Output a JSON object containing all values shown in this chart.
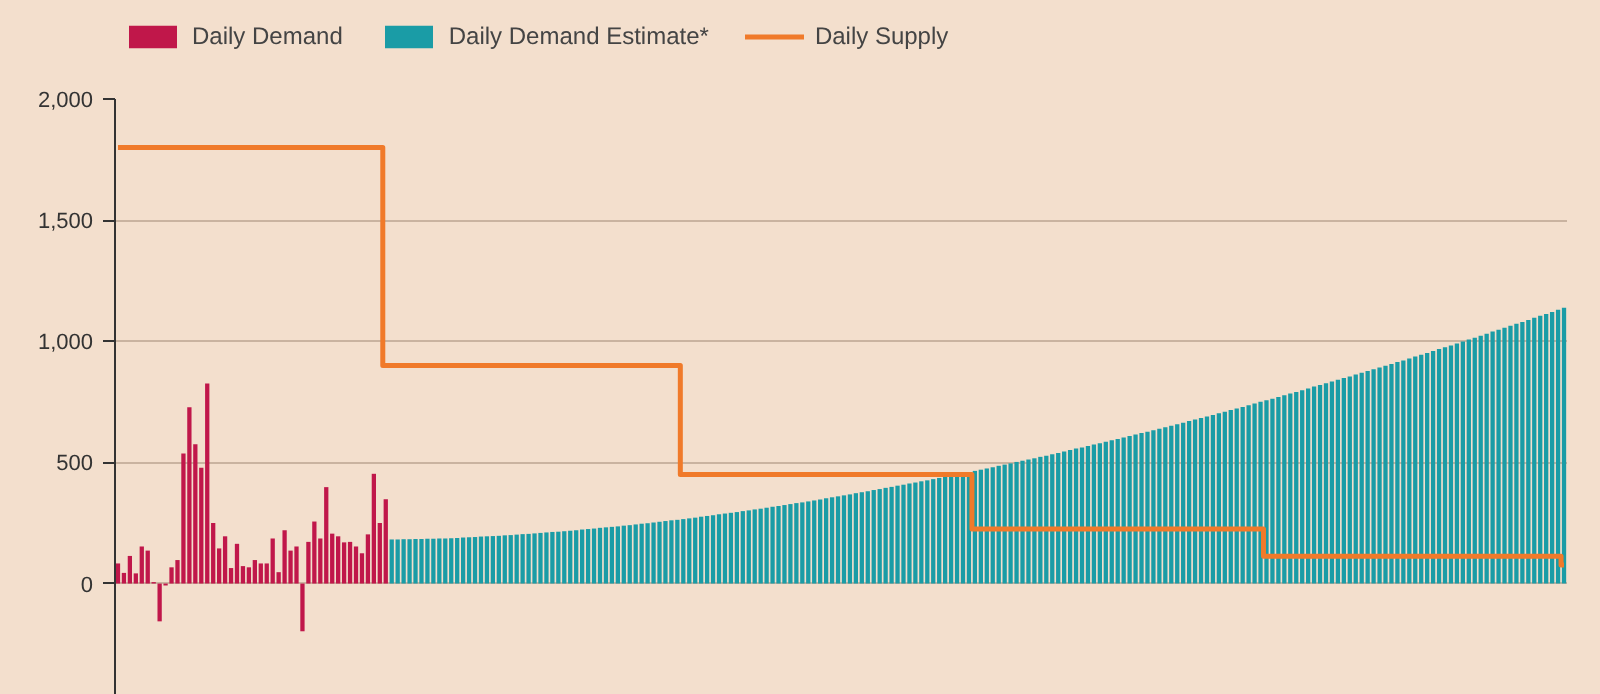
{
  "chart_data": {
    "type": "bar",
    "legend": "top",
    "grid": "y",
    "tick_labels": "y",
    "categories": [
      null,
      null,
      null,
      null,
      null,
      null,
      null,
      null,
      null,
      null,
      null,
      null,
      null,
      null,
      null,
      null,
      null,
      null,
      null,
      null,
      null,
      null,
      null,
      null,
      null,
      null,
      null,
      null,
      null,
      null,
      null,
      null,
      null,
      null,
      null,
      null,
      null,
      null,
      null,
      null,
      null,
      null,
      null,
      null,
      null,
      null,
      null,
      null,
      null,
      null,
      null,
      null,
      null,
      null,
      null,
      null,
      null,
      null,
      null,
      null,
      null,
      null,
      null,
      null,
      null,
      null,
      null,
      null,
      null,
      null,
      null,
      null,
      null,
      null,
      null,
      null,
      null,
      null,
      null,
      null,
      null,
      null,
      null,
      null,
      null,
      null,
      null,
      null,
      null,
      null,
      null,
      null,
      null,
      null,
      null,
      null,
      null,
      null,
      null,
      null,
      null,
      null,
      null,
      null,
      null,
      null,
      null,
      null,
      null,
      null,
      null,
      null,
      null,
      null,
      null,
      null,
      null,
      null,
      null,
      null,
      null,
      null,
      null,
      null,
      null,
      null,
      null,
      null,
      null,
      null,
      null,
      null,
      null,
      null,
      null,
      null,
      null,
      null,
      null,
      null,
      null,
      null,
      null,
      null,
      null,
      null,
      null,
      null,
      null,
      null,
      null,
      null,
      null,
      null,
      null,
      null,
      null,
      null,
      null,
      null,
      null,
      null,
      null,
      null,
      null,
      null,
      null,
      null,
      null,
      null,
      null,
      null,
      null,
      null,
      null,
      null,
      null,
      null,
      null,
      null,
      null,
      null,
      null,
      null,
      null,
      null,
      null,
      null,
      null,
      null,
      null,
      null,
      null,
      null,
      null,
      null,
      null,
      null,
      null,
      null,
      null,
      null,
      null,
      null,
      null,
      null,
      null,
      null,
      null,
      null,
      null,
      null,
      null,
      null,
      null,
      null,
      null,
      null,
      null,
      null,
      null,
      null,
      null,
      null,
      null,
      null,
      null,
      null,
      null,
      null,
      null,
      null,
      null,
      null,
      null,
      null,
      null,
      null,
      null,
      null,
      null,
      null,
      null,
      null
    ],
    "ylim": [
      -460,
      2000
    ],
    "yticks": [
      {
        "value": 0,
        "label": "0"
      },
      {
        "value": 500,
        "label": "500"
      },
      {
        "value": 1000,
        "label": "1,000"
      },
      {
        "value": 1500,
        "label": "1,500"
      },
      {
        "value": 2000,
        "label": "2,000"
      }
    ],
    "series": [
      {
        "name": "Daily Demand",
        "color": "#c0174a",
        "values": [
          83,
          44,
          114,
          42,
          153,
          136,
          6,
          -156,
          -8,
          67,
          97,
          537,
          728,
          575,
          478,
          826,
          250,
          145,
          195,
          64,
          164,
          72,
          67,
          97,
          83,
          83,
          186,
          47,
          220,
          136,
          153,
          -197,
          172,
          256,
          186,
          398,
          206,
          195,
          170,
          172,
          153,
          125,
          203,
          453,
          250,
          348,
          null,
          null,
          null,
          null,
          null,
          null,
          null,
          null,
          null,
          null,
          null,
          null,
          null,
          null,
          null,
          null,
          null,
          null,
          null,
          null,
          null,
          null,
          null,
          null,
          null,
          null,
          null,
          null,
          null,
          null,
          null,
          null,
          null,
          null,
          null,
          null,
          null,
          null,
          null,
          null,
          null,
          null,
          null,
          null,
          null,
          null,
          null,
          null,
          null,
          null,
          null,
          null,
          null,
          null,
          null,
          null,
          null,
          null,
          null,
          null,
          null,
          null,
          null,
          null,
          null,
          null,
          null,
          null,
          null,
          null,
          null,
          null,
          null,
          null,
          null,
          null,
          null,
          null,
          null,
          null,
          null,
          null,
          null,
          null,
          null,
          null,
          null,
          null,
          null,
          null,
          null,
          null,
          null,
          null,
          null,
          null,
          null,
          null,
          null,
          null,
          null,
          null,
          null,
          null,
          null,
          null,
          null,
          null,
          null,
          null,
          null,
          null,
          null,
          null,
          null,
          null,
          null,
          null,
          null,
          null,
          null,
          null,
          null,
          null,
          null,
          null,
          null,
          null,
          null,
          null,
          null,
          null,
          null,
          null,
          null,
          null,
          null,
          null,
          null,
          null,
          null,
          null,
          null,
          null,
          null,
          null,
          null,
          null,
          null,
          null,
          null,
          null,
          null,
          null,
          null,
          null,
          null,
          null,
          null,
          null,
          null,
          null,
          null,
          null,
          null,
          null,
          null,
          null,
          null,
          null,
          null,
          null,
          null,
          null,
          null,
          null,
          null,
          null,
          null,
          null,
          null,
          null,
          null,
          null,
          null,
          null,
          null,
          null,
          null,
          null,
          null,
          null,
          null,
          null,
          null,
          null,
          null,
          null
        ]
      },
      {
        "name": "Daily Demand Estimate*",
        "color": "#1a9ca6",
        "values": [
          null,
          null,
          null,
          null,
          null,
          null,
          null,
          null,
          null,
          null,
          null,
          null,
          null,
          null,
          null,
          null,
          null,
          null,
          null,
          null,
          null,
          null,
          null,
          null,
          null,
          null,
          null,
          null,
          null,
          null,
          null,
          null,
          null,
          null,
          null,
          null,
          null,
          null,
          null,
          null,
          null,
          null,
          null,
          null,
          null,
          null,
          182,
          182,
          183,
          183,
          184,
          184,
          185,
          185,
          186,
          186,
          187,
          188,
          190,
          191,
          192,
          194,
          195,
          196,
          197,
          199,
          200,
          202,
          204,
          205,
          207,
          209,
          211,
          213,
          214,
          216,
          218,
          220,
          223,
          225,
          227,
          230,
          232,
          234,
          236,
          239,
          241,
          244,
          247,
          249,
          252,
          255,
          258,
          261,
          263,
          266,
          269,
          272,
          276,
          279,
          282,
          286,
          289,
          292,
          295,
          299,
          302,
          306,
          309,
          313,
          317,
          320,
          324,
          328,
          332,
          335,
          339,
          343,
          347,
          352,
          356,
          360,
          364,
          368,
          373,
          377,
          381,
          386,
          390,
          395,
          399,
          404,
          408,
          413,
          417,
          422,
          426,
          431,
          436,
          441,
          446,
          451,
          455,
          460,
          465,
          470,
          475,
          480,
          486,
          491,
          496,
          502,
          507,
          512,
          517,
          523,
          528,
          534,
          539,
          545,
          551,
          557,
          562,
          568,
          574,
          579,
          585,
          591,
          597,
          603,
          609,
          615,
          621,
          627,
          633,
          639,
          645,
          651,
          658,
          664,
          671,
          677,
          683,
          690,
          696,
          703,
          709,
          716,
          723,
          729,
          736,
          743,
          750,
          757,
          763,
          770,
          777,
          784,
          791,
          798,
          805,
          813,
          820,
          827,
          834,
          841,
          848,
          855,
          863,
          870,
          877,
          885,
          892,
          899,
          906,
          914,
          921,
          929,
          937,
          944,
          952,
          960,
          968,
          975,
          983,
          991,
          999,
          1007,
          1015,
          1023,
          1031,
          1040,
          1048,
          1056,
          1064,
          1072,
          1080,
          1088,
          1097,
          1105,
          1113,
          1121,
          1130,
          1138
        ]
      },
      {
        "name": "Daily Supply",
        "type": "step",
        "color": "#f07a2a",
        "values": [
          1800,
          1800,
          1800,
          1800,
          1800,
          1800,
          1800,
          1800,
          1800,
          1800,
          1800,
          1800,
          1800,
          1800,
          1800,
          1800,
          1800,
          1800,
          1800,
          1800,
          1800,
          1800,
          1800,
          1800,
          1800,
          1800,
          1800,
          1800,
          1800,
          1800,
          1800,
          1800,
          1800,
          1800,
          1800,
          1800,
          1800,
          1800,
          1800,
          1800,
          1800,
          1800,
          1800,
          1800,
          1800,
          900,
          900,
          900,
          900,
          900,
          900,
          900,
          900,
          900,
          900,
          900,
          900,
          900,
          900,
          900,
          900,
          900,
          900,
          900,
          900,
          900,
          900,
          900,
          900,
          900,
          900,
          900,
          900,
          900,
          900,
          900,
          900,
          900,
          900,
          900,
          900,
          900,
          900,
          900,
          900,
          900,
          900,
          900,
          900,
          900,
          900,
          900,
          900,
          900,
          900,
          450,
          450,
          450,
          450,
          450,
          450,
          450,
          450,
          450,
          450,
          450,
          450,
          450,
          450,
          450,
          450,
          450,
          450,
          450,
          450,
          450,
          450,
          450,
          450,
          450,
          450,
          450,
          450,
          450,
          450,
          450,
          450,
          450,
          450,
          450,
          450,
          450,
          450,
          450,
          450,
          450,
          450,
          450,
          450,
          450,
          450,
          450,
          450,
          450,
          225,
          225,
          225,
          225,
          225,
          225,
          225,
          225,
          225,
          225,
          225,
          225,
          225,
          225,
          225,
          225,
          225,
          225,
          225,
          225,
          225,
          225,
          225,
          225,
          225,
          225,
          225,
          225,
          225,
          225,
          225,
          225,
          225,
          225,
          225,
          225,
          225,
          225,
          225,
          225,
          225,
          225,
          225,
          225,
          225,
          225,
          225,
          225,
          225,
          112.5,
          112.5,
          112.5,
          112.5,
          112.5,
          112.5,
          112.5,
          112.5,
          112.5,
          112.5,
          112.5,
          112.5,
          112.5,
          112.5,
          112.5,
          112.5,
          112.5,
          112.5,
          112.5,
          112.5,
          112.5,
          112.5,
          112.5,
          112.5,
          112.5,
          112.5,
          112.5,
          112.5,
          112.5,
          112.5,
          112.5,
          112.5,
          112.5,
          112.5,
          112.5,
          112.5,
          112.5,
          112.5,
          112.5,
          112.5,
          112.5,
          112.5,
          112.5,
          112.5,
          112.5,
          112.5,
          112.5,
          112.5,
          112.5,
          112.5,
          77
        ]
      }
    ]
  }
}
